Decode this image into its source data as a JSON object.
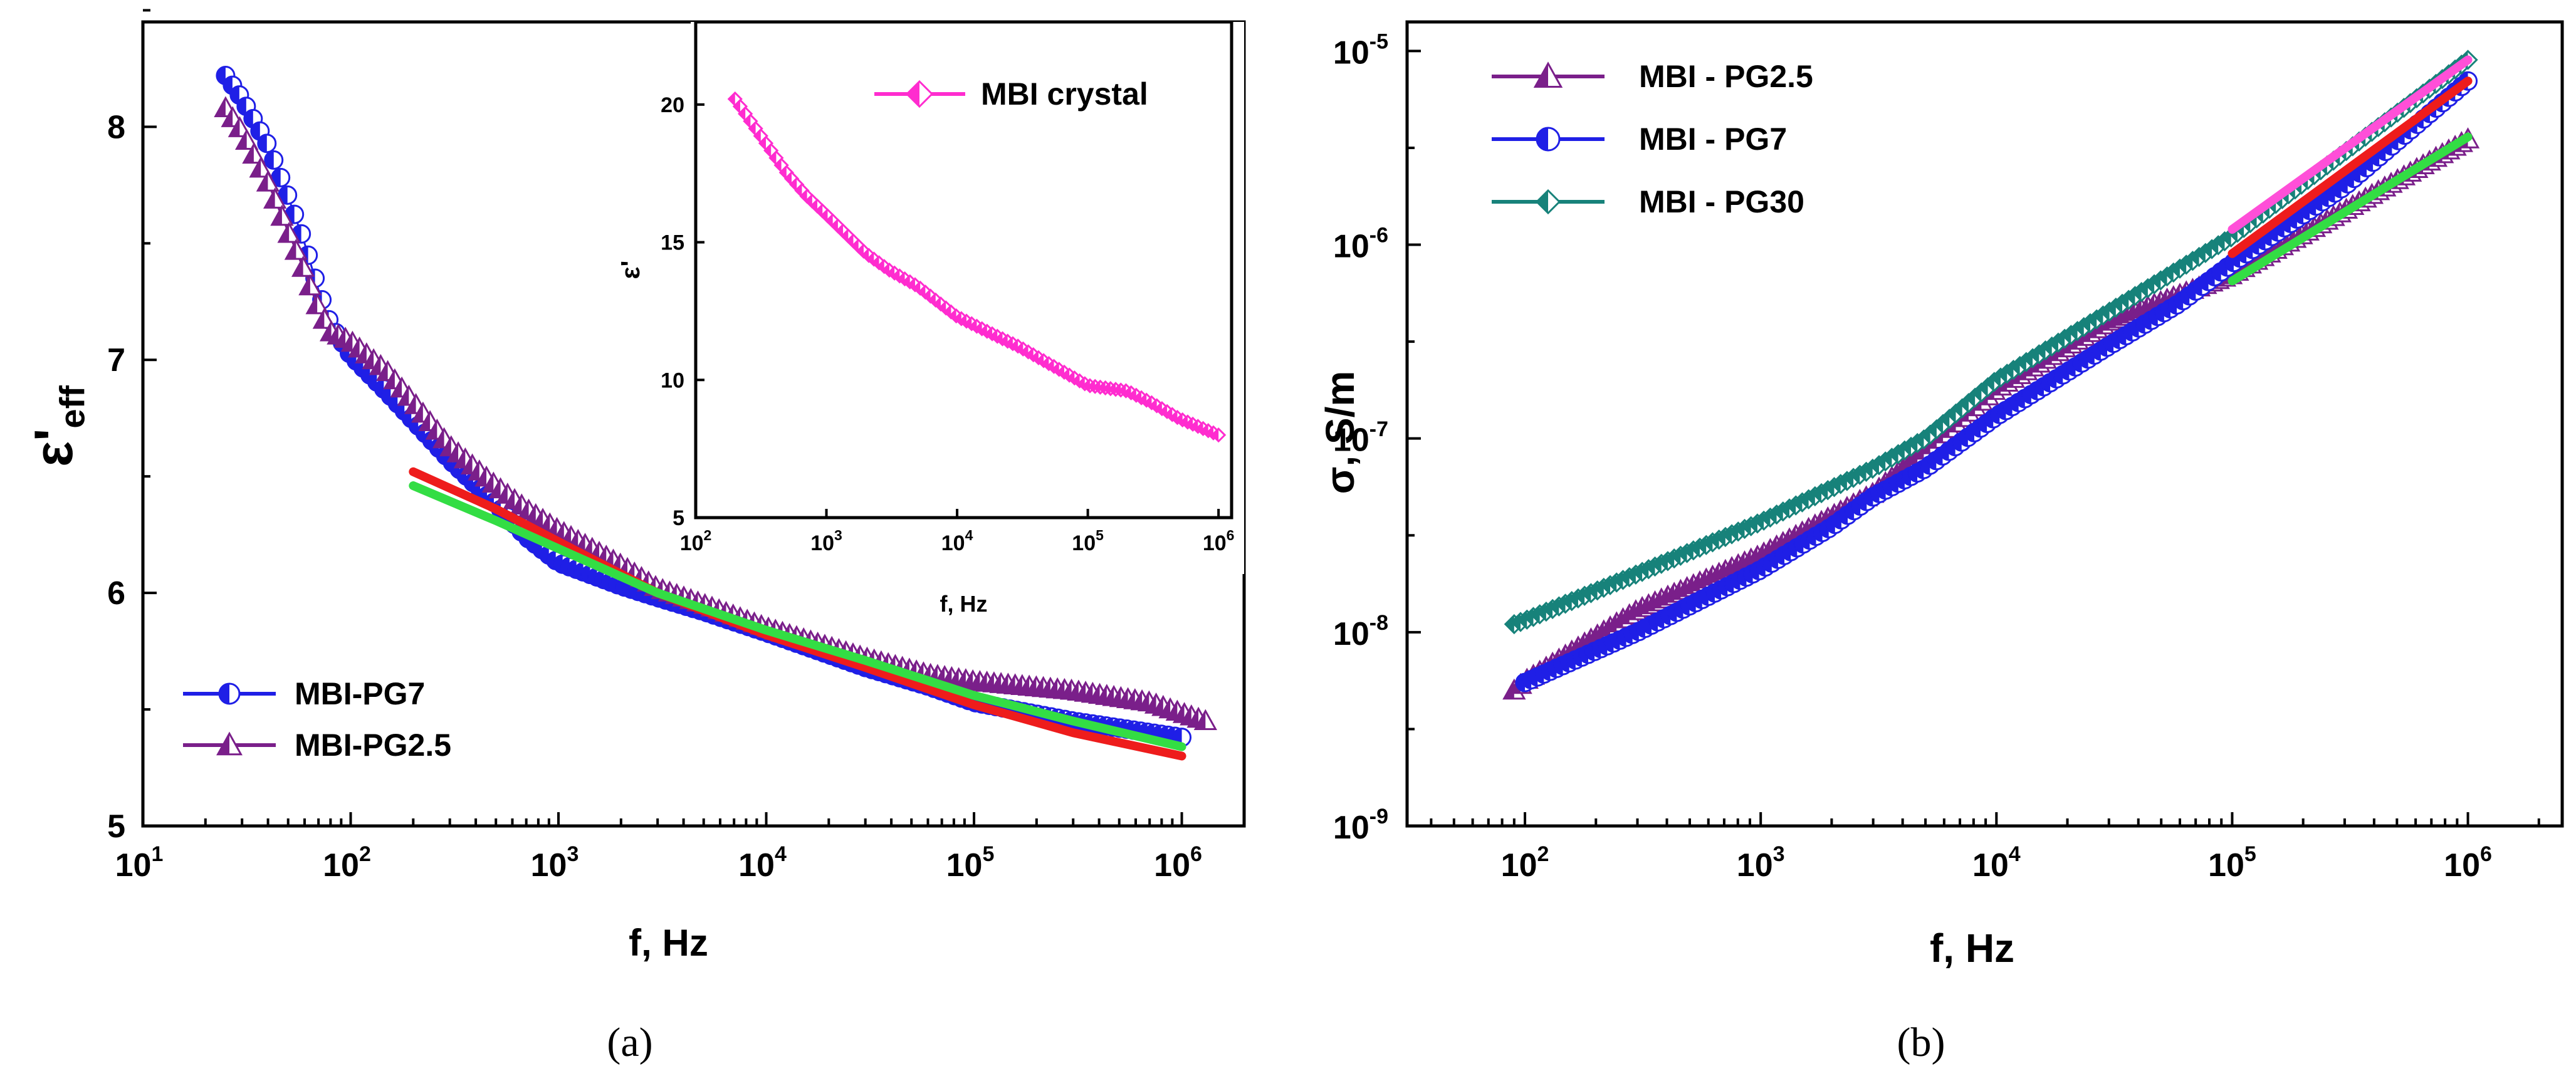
{
  "figure": {
    "captions": [
      "(a)",
      "(b)"
    ]
  },
  "colors": {
    "pg7": "#1f1fe6",
    "pg25": "#7a1f8a",
    "pg30": "#17827a",
    "crystal": "#ff2ccf",
    "fit_red": "#ee1c1c",
    "fit_green": "#33dd44",
    "fit_magenta": "#ff4fd8"
  },
  "chart_data": [
    {
      "id": "panel-a",
      "type": "scatter",
      "xscale": "log",
      "xlabel": "f, Hz",
      "ylabel": "ε'eff",
      "ylabel_main": "ε'",
      "ylabel_sub": "eff",
      "xlim_exp": [
        1,
        6.3
      ],
      "ylim": [
        5,
        8.45
      ],
      "x_ticks": [
        {
          "base": "10",
          "exp": "1"
        },
        {
          "base": "10",
          "exp": "2"
        },
        {
          "base": "10",
          "exp": "3"
        },
        {
          "base": "10",
          "exp": "4"
        },
        {
          "base": "10",
          "exp": "5"
        },
        {
          "base": "10",
          "exp": "6"
        }
      ],
      "y_ticks": [
        "5",
        "6",
        "7",
        "8"
      ],
      "legend_position": "bottom-left",
      "series": [
        {
          "name": "MBI-PG7",
          "color_key": "pg7",
          "marker": "circle-half",
          "x": [
            25,
            30,
            40,
            50,
            60,
            70,
            80,
            100,
            150,
            200,
            300,
            500,
            700,
            1000,
            2000,
            3000,
            5000,
            10000,
            30000,
            60000,
            100000,
            300000,
            1000000
          ],
          "y": [
            8.22,
            8.12,
            7.92,
            7.7,
            7.5,
            7.3,
            7.15,
            7.02,
            6.86,
            6.74,
            6.57,
            6.38,
            6.24,
            6.13,
            6.03,
            5.98,
            5.92,
            5.83,
            5.68,
            5.6,
            5.53,
            5.45,
            5.38
          ]
        },
        {
          "name": "MBI-PG2.5",
          "color_key": "pg25",
          "marker": "triangle-half",
          "x": [
            25,
            30,
            40,
            50,
            60,
            70,
            80,
            100,
            150,
            200,
            300,
            500,
            700,
            1000,
            2000,
            3000,
            5000,
            10000,
            30000,
            60000,
            100000,
            300000,
            700000,
            1300000
          ],
          "y": [
            8.08,
            7.98,
            7.76,
            7.55,
            7.38,
            7.22,
            7.12,
            7.08,
            6.95,
            6.82,
            6.63,
            6.46,
            6.36,
            6.27,
            6.12,
            6.02,
            5.95,
            5.85,
            5.72,
            5.65,
            5.62,
            5.58,
            5.53,
            5.45
          ]
        },
        {
          "name": "fit-red",
          "color_key": "fit_red",
          "marker": "line",
          "x": [
            200,
            500,
            1000,
            3000,
            10000,
            30000,
            100000,
            300000,
            1000000
          ],
          "y": [
            6.52,
            6.36,
            6.22,
            6.0,
            5.82,
            5.68,
            5.52,
            5.4,
            5.3
          ]
        },
        {
          "name": "fit-green",
          "color_key": "fit_green",
          "marker": "line",
          "x": [
            200,
            500,
            1000,
            3000,
            10000,
            30000,
            100000,
            300000,
            1000000
          ],
          "y": [
            6.46,
            6.31,
            6.19,
            6.0,
            5.84,
            5.71,
            5.56,
            5.45,
            5.34
          ]
        }
      ],
      "legend_entries": [
        {
          "label": "MBI-PG7",
          "color_key": "pg7",
          "marker": "circle-half"
        },
        {
          "label": "MBI-PG2.5",
          "color_key": "pg25",
          "marker": "triangle-half"
        }
      ],
      "inset": {
        "xlabel": "f, Hz",
        "ylabel": "ε'",
        "xlim_exp": [
          2,
          6.1
        ],
        "ylim": [
          5,
          23
        ],
        "x_ticks": [
          {
            "base": "10",
            "exp": "2"
          },
          {
            "base": "10",
            "exp": "3"
          },
          {
            "base": "10",
            "exp": "4"
          },
          {
            "base": "10",
            "exp": "5"
          },
          {
            "base": "10",
            "exp": "6"
          }
        ],
        "y_ticks": [
          "5",
          "10",
          "15",
          "20"
        ],
        "legend_position": "top-right",
        "series": [
          {
            "name": "MBI crystal",
            "color_key": "crystal",
            "marker": "diamond-half",
            "x": [
              200,
              300,
              500,
              700,
              1000,
              2000,
              3000,
              5000,
              10000,
              20000,
              30000,
              50000,
              100000,
              200000,
              300000,
              500000,
              1000000
            ],
            "y": [
              20.2,
              19.0,
              17.5,
              16.7,
              16.0,
              14.6,
              14.0,
              13.4,
              12.3,
              11.6,
              11.2,
              10.6,
              9.8,
              9.6,
              9.2,
              8.6,
              8.0
            ]
          }
        ]
      }
    },
    {
      "id": "panel-b",
      "type": "scatter",
      "xscale": "log",
      "yscale": "log",
      "xlabel": "f, Hz",
      "ylabel": "σ, S/m",
      "xlim_exp": [
        1.5,
        6.4
      ],
      "ylim_exp": [
        -9,
        -4.85
      ],
      "x_ticks": [
        {
          "base": "10",
          "exp": "2"
        },
        {
          "base": "10",
          "exp": "3"
        },
        {
          "base": "10",
          "exp": "4"
        },
        {
          "base": "10",
          "exp": "5"
        },
        {
          "base": "10",
          "exp": "6"
        }
      ],
      "y_ticks": [
        {
          "base": "10",
          "exp": "-9"
        },
        {
          "base": "10",
          "exp": "-8"
        },
        {
          "base": "10",
          "exp": "-7"
        },
        {
          "base": "10",
          "exp": "-6"
        },
        {
          "base": "10",
          "exp": "-5"
        }
      ],
      "legend_position": "top-left",
      "series": [
        {
          "name": "MBI - PG2.5",
          "color_key": "pg25",
          "marker": "triangle-half",
          "x": [
            90,
            100,
            300,
            1000,
            3000,
            10000,
            30000,
            100000,
            300000,
            1000000
          ],
          "y": [
            5e-09,
            5.6e-09,
            1.3e-08,
            2.5e-08,
            5.2e-08,
            1.8e-07,
            4e-07,
            7e-07,
            1.5e-06,
            3.5e-06
          ]
        },
        {
          "name": "MBI - PG7",
          "color_key": "pg7",
          "marker": "circle-half",
          "x": [
            100,
            300,
            1000,
            2000,
            3000,
            5000,
            10000,
            30000,
            60000,
            100000,
            300000,
            1000000
          ],
          "y": [
            5.5e-09,
            1e-08,
            2.1e-08,
            3.5e-08,
            5e-08,
            7e-08,
            1.3e-07,
            3e-07,
            5e-07,
            8e-07,
            2e-06,
            7e-06
          ]
        },
        {
          "name": "MBI - PG30",
          "color_key": "pg30",
          "marker": "diamond-half",
          "x": [
            90,
            100,
            300,
            1000,
            3000,
            5000,
            10000,
            30000,
            100000,
            300000,
            1000000
          ],
          "y": [
            1.1e-08,
            1.15e-08,
            2e-08,
            3.7e-08,
            7e-08,
            1e-07,
            2e-07,
            4.5e-07,
            1.1e-06,
            3e-06,
            9e-06
          ]
        },
        {
          "name": "fit-red",
          "color_key": "fit_red",
          "marker": "line",
          "x": [
            100000,
            1000000
          ],
          "y": [
            9e-07,
            7e-06
          ]
        },
        {
          "name": "fit-green",
          "color_key": "fit_green",
          "marker": "line",
          "x": [
            100000,
            1000000
          ],
          "y": [
            6.5e-07,
            3.6e-06
          ]
        },
        {
          "name": "fit-magenta",
          "color_key": "fit_magenta",
          "marker": "line",
          "x": [
            100000,
            1000000
          ],
          "y": [
            1.2e-06,
            9e-06
          ]
        }
      ],
      "legend_entries": [
        {
          "label": "MBI - PG2.5",
          "color_key": "pg25",
          "marker": "triangle-half"
        },
        {
          "label": "MBI - PG7",
          "color_key": "pg7",
          "marker": "circle-half"
        },
        {
          "label": "MBI - PG30",
          "color_key": "pg30",
          "marker": "diamond-half"
        }
      ]
    }
  ]
}
